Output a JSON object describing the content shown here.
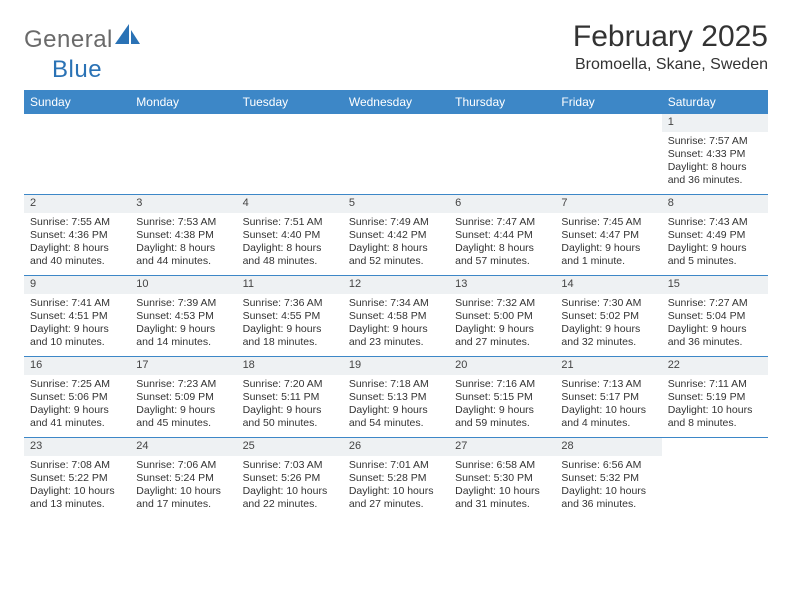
{
  "logo": {
    "text1": "General",
    "text2": "Blue"
  },
  "title": "February 2025",
  "location": "Bromoella, Skane, Sweden",
  "colors": {
    "header_bg": "#3d87c7",
    "header_text": "#ffffff",
    "daynum_bg": "#eef1f3",
    "border": "#3d87c7",
    "logo_gray": "#6a6a6a",
    "logo_blue": "#2a72b5",
    "body_text": "#333333"
  },
  "day_names": [
    "Sunday",
    "Monday",
    "Tuesday",
    "Wednesday",
    "Thursday",
    "Friday",
    "Saturday"
  ],
  "weeks": [
    [
      null,
      null,
      null,
      null,
      null,
      null,
      {
        "n": "1",
        "sunrise": "Sunrise: 7:57 AM",
        "sunset": "Sunset: 4:33 PM",
        "daylight": "Daylight: 8 hours and 36 minutes."
      }
    ],
    [
      {
        "n": "2",
        "sunrise": "Sunrise: 7:55 AM",
        "sunset": "Sunset: 4:36 PM",
        "daylight": "Daylight: 8 hours and 40 minutes."
      },
      {
        "n": "3",
        "sunrise": "Sunrise: 7:53 AM",
        "sunset": "Sunset: 4:38 PM",
        "daylight": "Daylight: 8 hours and 44 minutes."
      },
      {
        "n": "4",
        "sunrise": "Sunrise: 7:51 AM",
        "sunset": "Sunset: 4:40 PM",
        "daylight": "Daylight: 8 hours and 48 minutes."
      },
      {
        "n": "5",
        "sunrise": "Sunrise: 7:49 AM",
        "sunset": "Sunset: 4:42 PM",
        "daylight": "Daylight: 8 hours and 52 minutes."
      },
      {
        "n": "6",
        "sunrise": "Sunrise: 7:47 AM",
        "sunset": "Sunset: 4:44 PM",
        "daylight": "Daylight: 8 hours and 57 minutes."
      },
      {
        "n": "7",
        "sunrise": "Sunrise: 7:45 AM",
        "sunset": "Sunset: 4:47 PM",
        "daylight": "Daylight: 9 hours and 1 minute."
      },
      {
        "n": "8",
        "sunrise": "Sunrise: 7:43 AM",
        "sunset": "Sunset: 4:49 PM",
        "daylight": "Daylight: 9 hours and 5 minutes."
      }
    ],
    [
      {
        "n": "9",
        "sunrise": "Sunrise: 7:41 AM",
        "sunset": "Sunset: 4:51 PM",
        "daylight": "Daylight: 9 hours and 10 minutes."
      },
      {
        "n": "10",
        "sunrise": "Sunrise: 7:39 AM",
        "sunset": "Sunset: 4:53 PM",
        "daylight": "Daylight: 9 hours and 14 minutes."
      },
      {
        "n": "11",
        "sunrise": "Sunrise: 7:36 AM",
        "sunset": "Sunset: 4:55 PM",
        "daylight": "Daylight: 9 hours and 18 minutes."
      },
      {
        "n": "12",
        "sunrise": "Sunrise: 7:34 AM",
        "sunset": "Sunset: 4:58 PM",
        "daylight": "Daylight: 9 hours and 23 minutes."
      },
      {
        "n": "13",
        "sunrise": "Sunrise: 7:32 AM",
        "sunset": "Sunset: 5:00 PM",
        "daylight": "Daylight: 9 hours and 27 minutes."
      },
      {
        "n": "14",
        "sunrise": "Sunrise: 7:30 AM",
        "sunset": "Sunset: 5:02 PM",
        "daylight": "Daylight: 9 hours and 32 minutes."
      },
      {
        "n": "15",
        "sunrise": "Sunrise: 7:27 AM",
        "sunset": "Sunset: 5:04 PM",
        "daylight": "Daylight: 9 hours and 36 minutes."
      }
    ],
    [
      {
        "n": "16",
        "sunrise": "Sunrise: 7:25 AM",
        "sunset": "Sunset: 5:06 PM",
        "daylight": "Daylight: 9 hours and 41 minutes."
      },
      {
        "n": "17",
        "sunrise": "Sunrise: 7:23 AM",
        "sunset": "Sunset: 5:09 PM",
        "daylight": "Daylight: 9 hours and 45 minutes."
      },
      {
        "n": "18",
        "sunrise": "Sunrise: 7:20 AM",
        "sunset": "Sunset: 5:11 PM",
        "daylight": "Daylight: 9 hours and 50 minutes."
      },
      {
        "n": "19",
        "sunrise": "Sunrise: 7:18 AM",
        "sunset": "Sunset: 5:13 PM",
        "daylight": "Daylight: 9 hours and 54 minutes."
      },
      {
        "n": "20",
        "sunrise": "Sunrise: 7:16 AM",
        "sunset": "Sunset: 5:15 PM",
        "daylight": "Daylight: 9 hours and 59 minutes."
      },
      {
        "n": "21",
        "sunrise": "Sunrise: 7:13 AM",
        "sunset": "Sunset: 5:17 PM",
        "daylight": "Daylight: 10 hours and 4 minutes."
      },
      {
        "n": "22",
        "sunrise": "Sunrise: 7:11 AM",
        "sunset": "Sunset: 5:19 PM",
        "daylight": "Daylight: 10 hours and 8 minutes."
      }
    ],
    [
      {
        "n": "23",
        "sunrise": "Sunrise: 7:08 AM",
        "sunset": "Sunset: 5:22 PM",
        "daylight": "Daylight: 10 hours and 13 minutes."
      },
      {
        "n": "24",
        "sunrise": "Sunrise: 7:06 AM",
        "sunset": "Sunset: 5:24 PM",
        "daylight": "Daylight: 10 hours and 17 minutes."
      },
      {
        "n": "25",
        "sunrise": "Sunrise: 7:03 AM",
        "sunset": "Sunset: 5:26 PM",
        "daylight": "Daylight: 10 hours and 22 minutes."
      },
      {
        "n": "26",
        "sunrise": "Sunrise: 7:01 AM",
        "sunset": "Sunset: 5:28 PM",
        "daylight": "Daylight: 10 hours and 27 minutes."
      },
      {
        "n": "27",
        "sunrise": "Sunrise: 6:58 AM",
        "sunset": "Sunset: 5:30 PM",
        "daylight": "Daylight: 10 hours and 31 minutes."
      },
      {
        "n": "28",
        "sunrise": "Sunrise: 6:56 AM",
        "sunset": "Sunset: 5:32 PM",
        "daylight": "Daylight: 10 hours and 36 minutes."
      },
      null
    ]
  ]
}
